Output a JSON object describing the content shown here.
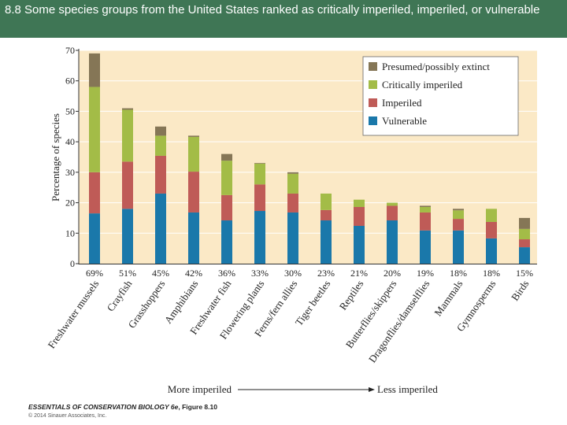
{
  "header": {
    "title": "8.8  Some species groups from the United States ranked as critically imperiled, imperiled, or vulnerable"
  },
  "chart_data": {
    "type": "bar",
    "stacked": true,
    "ylabel": "Percentage of species",
    "ylim": [
      0,
      70
    ],
    "yticks": [
      0,
      10,
      20,
      30,
      40,
      50,
      60,
      70
    ],
    "grid": true,
    "legend_position": "top-right",
    "categories": [
      "Freshwater mussels",
      "Crayfish",
      "Grasshoppers",
      "Amphibians",
      "Freshwater fish",
      "Flowering plants",
      "Ferns/fern allies",
      "Tiger beetles",
      "Reptiles",
      "Butterflies/skippers",
      "Dragonflies/damselflies",
      "Mammals",
      "Gymnosperms",
      "Birds"
    ],
    "totals_labels": [
      "69%",
      "51%",
      "45%",
      "42%",
      "36%",
      "33%",
      "30%",
      "23%",
      "21%",
      "20%",
      "19%",
      "18%",
      "18%",
      "15%"
    ],
    "series": [
      {
        "name": "Vulnerable",
        "color": "#1a78aa",
        "values": [
          16.5,
          18,
          23,
          16.8,
          14.2,
          17.3,
          16.8,
          14.2,
          12.4,
          14.2,
          10.9,
          10.9,
          8.3,
          5.4
        ]
      },
      {
        "name": "Imperiled",
        "color": "#bf5b57",
        "values": [
          13.5,
          15.5,
          12.4,
          13.4,
          8.3,
          8.7,
          6.2,
          3.4,
          6.2,
          4.8,
          5.9,
          3.8,
          5.4,
          2.6
        ]
      },
      {
        "name": "Critically imperiled",
        "color": "#a3bc47",
        "values": [
          28,
          17,
          6.6,
          11.4,
          11.3,
          6.8,
          6.5,
          5.4,
          2.4,
          1,
          1.8,
          2.8,
          4.3,
          3.4
        ]
      },
      {
        "name": "Presumed/possibly extinct",
        "color": "#857656",
        "values": [
          11,
          0.5,
          3,
          0.4,
          2.2,
          0.2,
          0.5,
          0,
          0,
          0,
          0.4,
          0.5,
          0,
          3.6
        ]
      }
    ],
    "arrow": {
      "left": "More imperiled",
      "right": "Less imperiled"
    },
    "background_color": "#fbe9c6"
  },
  "credit": {
    "book": "ESSENTIALS OF CONSERVATION BIOLOGY 6e",
    "figure": ", Figure 8.10",
    "copyright": "© 2014 Sinauer Associates, Inc."
  }
}
